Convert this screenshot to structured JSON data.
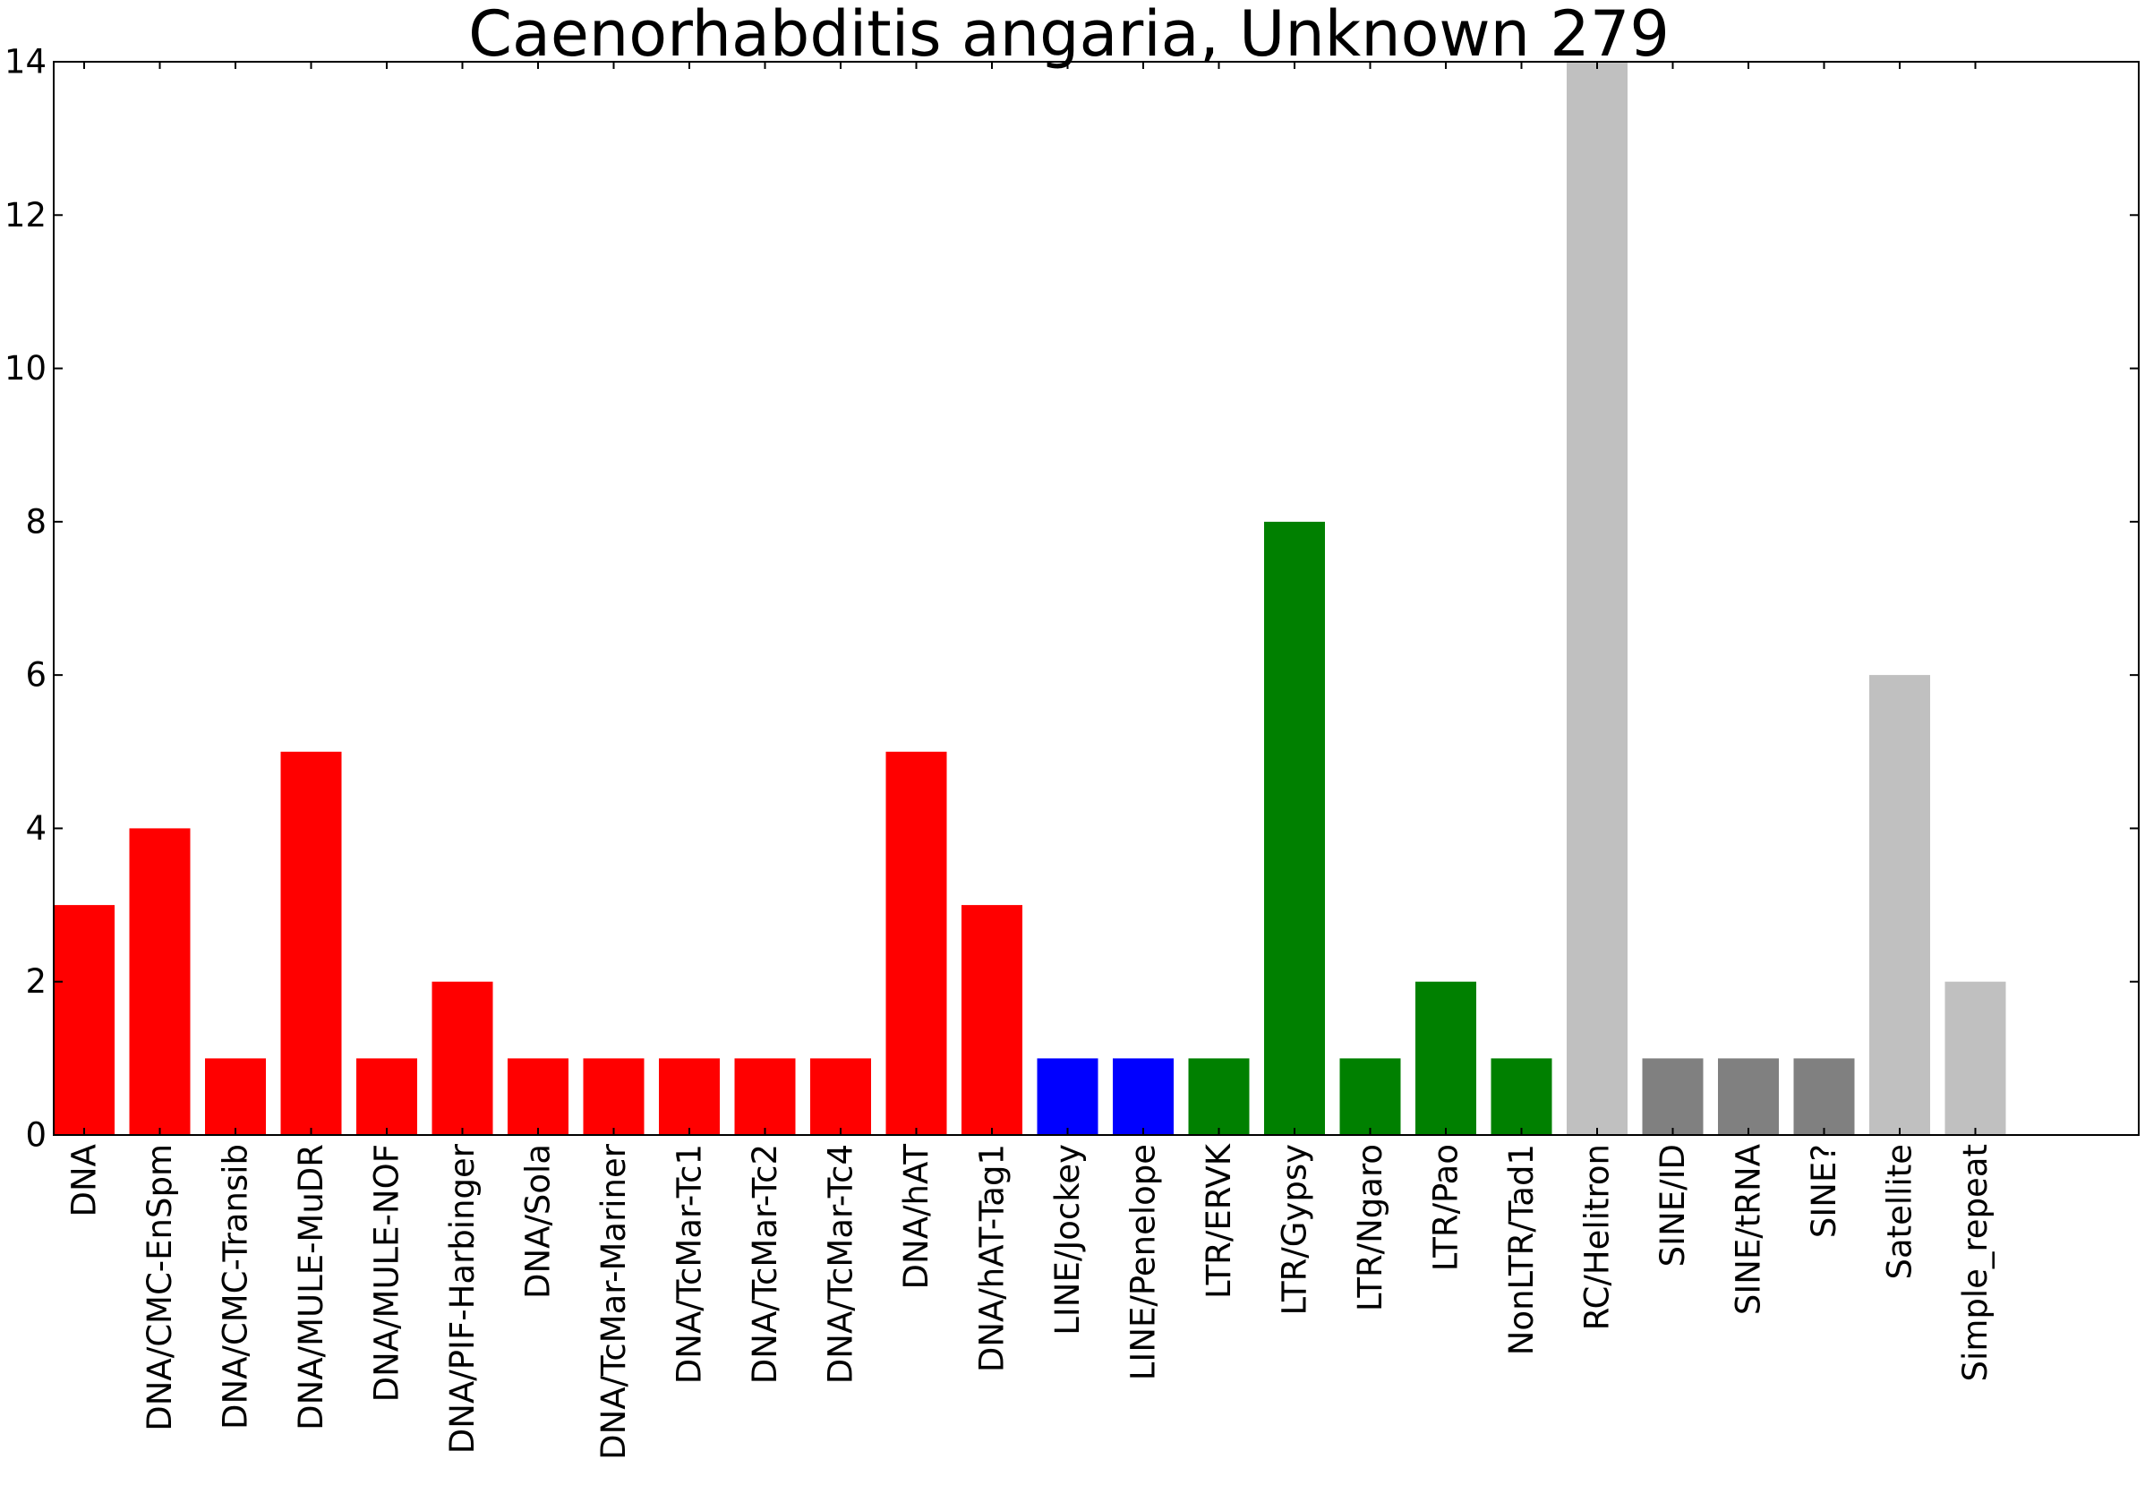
{
  "chart_data": {
    "type": "bar",
    "title": "Caenorhabditis angaria, Unknown 279",
    "xlabel": "",
    "ylabel": "",
    "ylim": [
      0,
      14
    ],
    "yticks": [
      0,
      2,
      4,
      6,
      8,
      10,
      12,
      14
    ],
    "grid": false,
    "categories": [
      "DNA",
      "DNA/CMC-EnSpm",
      "DNA/CMC-Transib",
      "DNA/MULE-MuDR",
      "DNA/MULE-NOF",
      "DNA/PIF-Harbinger",
      "DNA/Sola",
      "DNA/TcMar-Mariner",
      "DNA/TcMar-Tc1",
      "DNA/TcMar-Tc2",
      "DNA/TcMar-Tc4",
      "DNA/hAT",
      "DNA/hAT-Tag1",
      "LINE/Jockey",
      "LINE/Penelope",
      "LTR/ERVK",
      "LTR/Gypsy",
      "LTR/Ngaro",
      "LTR/Pao",
      "NonLTR/Tad1",
      "RC/Helitron",
      "SINE/ID",
      "SINE/tRNA",
      "SINE?",
      "Satellite",
      "Simple_repeat"
    ],
    "values": [
      3,
      4,
      1,
      5,
      1,
      2,
      1,
      1,
      1,
      1,
      1,
      5,
      3,
      1,
      1,
      1,
      8,
      1,
      2,
      1,
      14,
      1,
      1,
      1,
      6,
      2
    ],
    "colors": [
      "#ff0000",
      "#ff0000",
      "#ff0000",
      "#ff0000",
      "#ff0000",
      "#ff0000",
      "#ff0000",
      "#ff0000",
      "#ff0000",
      "#ff0000",
      "#ff0000",
      "#ff0000",
      "#ff0000",
      "#0000ff",
      "#0000ff",
      "#008000",
      "#008000",
      "#008000",
      "#008000",
      "#008000",
      "#c0c0c0",
      "#808080",
      "#808080",
      "#808080",
      "#c0c0c0",
      "#c0c0c0"
    ]
  }
}
